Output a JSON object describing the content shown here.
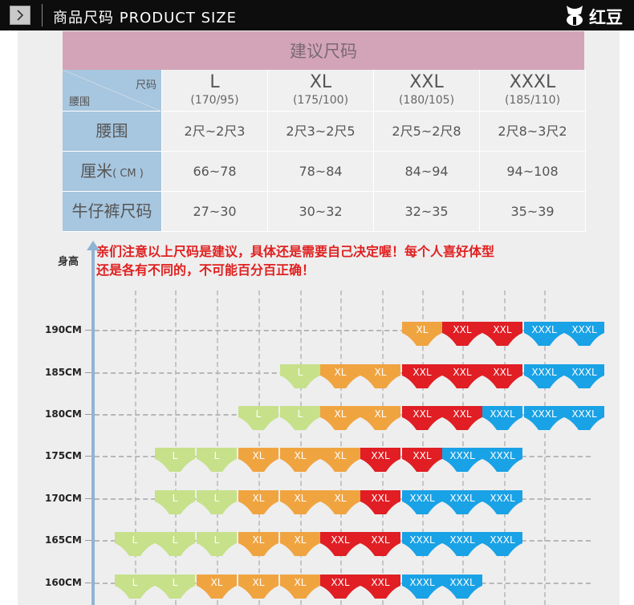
{
  "header": {
    "title": "商品尺码 PRODUCT SIZE",
    "brand": "红豆"
  },
  "size_table": {
    "title": "建议尺码",
    "corner_top": "尺码",
    "corner_bottom": "腰围",
    "columns": [
      {
        "size": "L",
        "range": "(170/95)"
      },
      {
        "size": "XL",
        "range": "(175/100)"
      },
      {
        "size": "XXL",
        "range": "(180/105)"
      },
      {
        "size": "XXXL",
        "range": "(185/110)"
      }
    ],
    "rows": [
      {
        "label": "腰围",
        "label_suffix": "",
        "values": [
          "2尺~2尺3",
          "2尺3~2尺5",
          "2尺5~2尺8",
          "2尺8~3尺2"
        ]
      },
      {
        "label": "厘米",
        "label_suffix": "( CM )",
        "values": [
          "66~78",
          "78~84",
          "84~94",
          "94~108"
        ]
      },
      {
        "label": "牛仔裤尺码",
        "label_suffix": "",
        "values": [
          "27~30",
          "30~32",
          "32~35",
          "35~39"
        ]
      }
    ]
  },
  "notice": {
    "line1": "亲们注意以上尺码是建议，具体还是需要自己决定喔！每个人喜好体型",
    "line2": "还是各有不同的，不可能百分百正确！"
  },
  "chart": {
    "axis_label": "身高",
    "colors": {
      "L": "#c6e18a",
      "XL": "#f0a440",
      "XXL": "#e01e24",
      "XXXL": "#19a2e6"
    },
    "rows": [
      {
        "height": "190CM",
        "sizes": [
          null,
          null,
          null,
          null,
          null,
          null,
          null,
          "XL",
          "XXL",
          "XXL",
          "XXXL",
          "XXXL"
        ]
      },
      {
        "height": "185CM",
        "sizes": [
          null,
          null,
          null,
          null,
          "L",
          "XL",
          "XL",
          "XXL",
          "XXL",
          "XXL",
          "XXXL",
          "XXXL"
        ]
      },
      {
        "height": "180CM",
        "sizes": [
          null,
          null,
          null,
          "L",
          "L",
          "XL",
          "XL",
          "XXL",
          "XXL",
          "XXXL",
          "XXXL",
          "XXXL"
        ]
      },
      {
        "height": "175CM",
        "sizes": [
          null,
          "L",
          "L",
          "XL",
          "XL",
          "XL",
          "XXL",
          "XXL",
          "XXXL",
          "XXXL",
          null,
          null
        ]
      },
      {
        "height": "170CM",
        "sizes": [
          null,
          "L",
          "L",
          "XL",
          "XL",
          "XL",
          "XXL",
          "XXXL",
          "XXXL",
          "XXXL",
          null,
          null
        ]
      },
      {
        "height": "165CM",
        "sizes": [
          "L",
          "L",
          "L",
          "XL",
          "XL",
          "XXL",
          "XXL",
          "XXXL",
          "XXXL",
          "XXXL",
          null,
          null
        ]
      },
      {
        "height": "160CM",
        "sizes": [
          "L",
          "L",
          "XL",
          "XL",
          "XL",
          "XXL",
          "XXL",
          "XXXL",
          "XXXL",
          null,
          null,
          null
        ]
      }
    ]
  }
}
